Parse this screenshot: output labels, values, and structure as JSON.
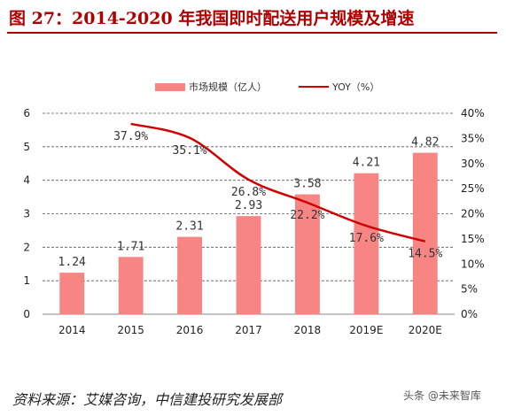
{
  "title": "图 27：2014-2020 年我国即时配送用户规模及增速",
  "source": "资料来源：艾媒咨询，中信建投研究发展部",
  "watermark": "头条 @未来智库",
  "colors": {
    "bar": "#f68584",
    "line": "#d00000",
    "title": "#b00000"
  },
  "chart_data": {
    "type": "bar",
    "title": "",
    "categories": [
      "2014",
      "2015",
      "2016",
      "2017",
      "2018",
      "2019E",
      "2020E"
    ],
    "series": [
      {
        "name": "市场规模（亿人）",
        "type": "bar",
        "axis": "left",
        "values": [
          1.24,
          1.71,
          2.31,
          2.93,
          3.58,
          4.21,
          4.82
        ],
        "labels": [
          "1.24",
          "1.71",
          "2.31",
          "2.93",
          "3.58",
          "4.21",
          "4.82"
        ]
      },
      {
        "name": "YOY（%）",
        "type": "line",
        "axis": "right",
        "values": [
          null,
          37.9,
          35.1,
          26.8,
          22.2,
          17.6,
          14.5
        ],
        "labels": [
          "",
          "37.9%",
          "35.1%",
          "26.8%",
          "22.2%",
          "17.6%",
          "14.5%"
        ]
      }
    ],
    "y_left": {
      "min": 0,
      "max": 6,
      "ticks": [
        "0",
        "1",
        "2",
        "3",
        "4",
        "5",
        "6"
      ]
    },
    "y_right": {
      "min": 0,
      "max": 40,
      "ticks": [
        "0%",
        "5%",
        "10%",
        "15%",
        "20%",
        "25%",
        "30%",
        "35%",
        "40%"
      ]
    },
    "grid": true,
    "legend_position": "top"
  }
}
